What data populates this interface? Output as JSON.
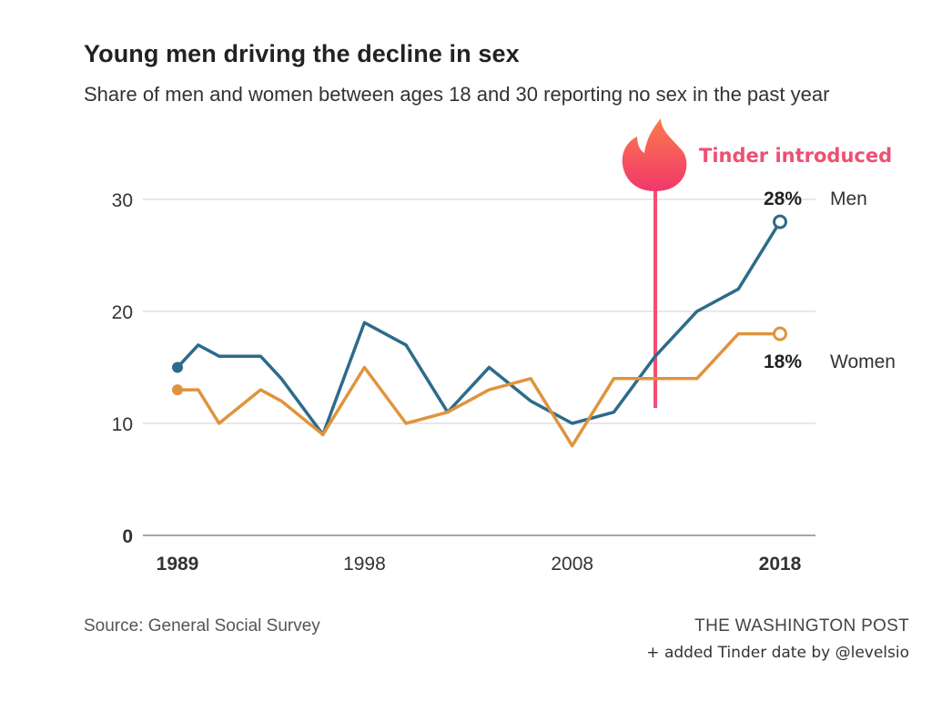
{
  "title": "Young men driving the decline in sex",
  "subtitle": "Share of men and women between ages 18 and 30 reporting no sex in the past year",
  "source": "Source: General Social Survey",
  "publisher": "THE WASHINGTON POST",
  "credit": "+ added Tinder date by @levelsio",
  "colors": {
    "men": "#2e6b8a",
    "women": "#e0933d",
    "tinder": "#ef4f72",
    "grid": "#d9d9d9",
    "axis": "#888888"
  },
  "chart_data": {
    "type": "line",
    "title": "Young men driving the decline in sex",
    "subtitle": "Share of men and women between ages 18 and 30 reporting no sex in the past year",
    "xlabel": "",
    "ylabel": "",
    "xlim": [
      1989,
      2018
    ],
    "ylim": [
      0,
      30
    ],
    "yticks": [
      "0",
      "10",
      "20",
      "30"
    ],
    "xticks": [
      "1989",
      "1998",
      "2008",
      "2018"
    ],
    "grid": true,
    "series": [
      {
        "name": "Men",
        "end_label": "28%",
        "x": [
          1989,
          1990,
          1991,
          1993,
          1994,
          1996,
          1998,
          2000,
          2002,
          2004,
          2006,
          2008,
          2010,
          2012,
          2014,
          2016,
          2018
        ],
        "y": [
          15,
          17,
          16,
          16,
          14,
          9,
          19,
          17,
          11,
          15,
          12,
          10,
          11,
          16,
          20,
          22,
          28
        ]
      },
      {
        "name": "Women",
        "end_label": "18%",
        "x": [
          1989,
          1990,
          1991,
          1993,
          1994,
          1996,
          1998,
          2000,
          2002,
          2004,
          2006,
          2008,
          2010,
          2012,
          2014,
          2016,
          2018
        ],
        "y": [
          13,
          13,
          10,
          13,
          12,
          9,
          15,
          10,
          11,
          13,
          14,
          8,
          14,
          14,
          14,
          18,
          18
        ]
      }
    ],
    "annotations": [
      {
        "label": "Tinder introduced",
        "x": 2012,
        "icon": "tinder-flame-icon"
      }
    ]
  }
}
